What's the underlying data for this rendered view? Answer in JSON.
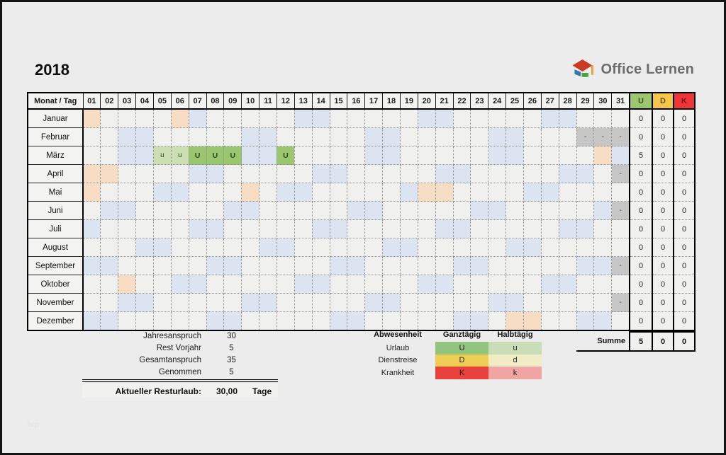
{
  "year": "2018",
  "brand": {
    "text": "Office Lernen"
  },
  "watermark": "hcp",
  "colors": {
    "weekend": "#dbe4f0",
    "holiday": "#f6ddc4",
    "nonday": "#c6c6c6",
    "vac_full": "#9ac66f",
    "vac_half": "#cbdfb3",
    "u_head": "#9cc56f",
    "d_head": "#f4c64a",
    "k_head": "#ee3636"
  },
  "table": {
    "corner_label": "Monat / Tag",
    "day_count": 31,
    "abs_headers": [
      "U",
      "D",
      "K"
    ],
    "months": [
      {
        "name": "Januar",
        "marks": {
          "1": "H",
          "6": "H",
          "7": "W",
          "13": "W",
          "14": "W",
          "20": "W",
          "21": "W",
          "27": "W",
          "28": "W"
        },
        "totals": [
          "0",
          "0",
          "0"
        ]
      },
      {
        "name": "Februar",
        "marks": {
          "3": "W",
          "4": "W",
          "10": "W",
          "11": "W",
          "17": "W",
          "18": "W",
          "24": "W",
          "25": "W",
          "29": "X",
          "30": "X",
          "31": "X"
        },
        "totals": [
          "0",
          "0",
          "0"
        ]
      },
      {
        "name": "März",
        "marks": {
          "3": "W",
          "4": "W",
          "5": "u",
          "6": "u",
          "7": "U",
          "8": "U",
          "9": "U",
          "10": "W",
          "11": "W",
          "12": "U",
          "17": "W",
          "18": "W",
          "24": "W",
          "25": "W",
          "30": "H",
          "31": "W"
        },
        "totals": [
          "5",
          "0",
          "0"
        ]
      },
      {
        "name": "April",
        "marks": {
          "1": "H",
          "2": "H",
          "7": "W",
          "8": "W",
          "14": "W",
          "15": "W",
          "21": "W",
          "22": "W",
          "28": "W",
          "29": "W",
          "31": "X"
        },
        "totals": [
          "0",
          "0",
          "0"
        ]
      },
      {
        "name": "Mai",
        "marks": {
          "1": "H",
          "5": "W",
          "6": "W",
          "10": "H",
          "12": "W",
          "13": "W",
          "19": "W",
          "20": "H",
          "21": "H",
          "26": "W",
          "27": "W"
        },
        "totals": [
          "0",
          "0",
          "0"
        ]
      },
      {
        "name": "Juni",
        "marks": {
          "2": "W",
          "3": "W",
          "9": "W",
          "10": "W",
          "16": "W",
          "17": "W",
          "23": "W",
          "24": "W",
          "30": "W",
          "31": "X"
        },
        "totals": [
          "0",
          "0",
          "0"
        ]
      },
      {
        "name": "Juli",
        "marks": {
          "1": "W",
          "7": "W",
          "8": "W",
          "14": "W",
          "15": "W",
          "21": "W",
          "22": "W",
          "28": "W",
          "29": "W"
        },
        "totals": [
          "0",
          "0",
          "0"
        ]
      },
      {
        "name": "August",
        "marks": {
          "4": "W",
          "5": "W",
          "11": "W",
          "12": "W",
          "18": "W",
          "19": "W",
          "25": "W",
          "26": "W"
        },
        "totals": [
          "0",
          "0",
          "0"
        ]
      },
      {
        "name": "September",
        "marks": {
          "1": "W",
          "2": "W",
          "8": "W",
          "9": "W",
          "15": "W",
          "16": "W",
          "22": "W",
          "23": "W",
          "29": "W",
          "30": "W",
          "31": "X"
        },
        "totals": [
          "0",
          "0",
          "0"
        ]
      },
      {
        "name": "Oktober",
        "marks": {
          "3": "H",
          "6": "W",
          "7": "W",
          "13": "W",
          "14": "W",
          "20": "W",
          "21": "W",
          "27": "W",
          "28": "W"
        },
        "totals": [
          "0",
          "0",
          "0"
        ]
      },
      {
        "name": "November",
        "marks": {
          "3": "W",
          "4": "W",
          "10": "W",
          "11": "W",
          "17": "W",
          "18": "W",
          "24": "W",
          "25": "W",
          "31": "X"
        },
        "totals": [
          "0",
          "0",
          "0"
        ]
      },
      {
        "name": "Dezember",
        "marks": {
          "1": "W",
          "2": "W",
          "8": "W",
          "9": "W",
          "15": "W",
          "16": "W",
          "22": "W",
          "23": "W",
          "25": "H",
          "26": "H",
          "29": "W",
          "30": "W"
        },
        "totals": [
          "0",
          "0",
          "0"
        ]
      }
    ],
    "summe": {
      "label": "Summe",
      "totals": [
        "5",
        "0",
        "0"
      ]
    }
  },
  "summary": {
    "rows": [
      {
        "label": "Jahresanspruch",
        "value": "30"
      },
      {
        "label": "Rest Vorjahr",
        "value": "5"
      },
      {
        "label": "Gesamtanspruch",
        "value": "35"
      },
      {
        "label": "Genommen",
        "value": "5"
      }
    ],
    "total": {
      "label": "Aktueller Resturlaub:",
      "value": "30,00",
      "unit": "Tage"
    }
  },
  "legend": {
    "headers": [
      "Abwesenheit",
      "Ganztägig",
      "Halbtägig"
    ],
    "rows": [
      {
        "label": "Urlaub",
        "full": "U",
        "half": "u",
        "full_color": "#93c47d",
        "half_color": "#c9deb6"
      },
      {
        "label": "Dienstreise",
        "full": "D",
        "half": "d",
        "full_color": "#eecd54",
        "half_color": "#f1ecc4"
      },
      {
        "label": "Krankheit",
        "full": "K",
        "half": "k",
        "full_color": "#e8403c",
        "half_color": "#efa5a3"
      }
    ]
  }
}
